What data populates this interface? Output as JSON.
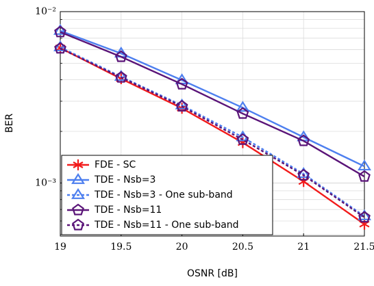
{
  "chart_data": {
    "type": "line",
    "xlabel": "OSNR [dB]",
    "ylabel": "BER",
    "x": [
      19,
      19.5,
      20,
      20.5,
      21,
      21.5
    ],
    "xlim": [
      19,
      21.5
    ],
    "xticks": [
      19,
      19.5,
      20,
      20.5,
      21,
      21.5
    ],
    "ylim": [
      0.00049,
      0.01
    ],
    "log_y": true,
    "yticks": [
      {
        "value": 0.01,
        "label": "10⁻²"
      },
      {
        "value": 0.001,
        "label": "10⁻³"
      }
    ],
    "grid": true,
    "minor_grid": true,
    "legend": "lower left",
    "series": [
      {
        "name": "FDE - SC",
        "color": "#f21b1b",
        "marker": "asterisk",
        "dashed": false,
        "values": [
          0.00614,
          0.00406,
          0.00273,
          0.00172,
          0.00102,
          0.000575
        ]
      },
      {
        "name": "TDE - Nsb=3",
        "color": "#4d7fef",
        "marker": "triangle",
        "dashed": false,
        "values": [
          0.00773,
          0.0057,
          0.00398,
          0.00275,
          0.00185,
          0.00125
        ]
      },
      {
        "name": "TDE - Nsb=3 - One sub-band",
        "color": "#4d7fef",
        "marker": "triangle",
        "dashed": true,
        "values": [
          0.0062,
          0.00417,
          0.00284,
          0.00185,
          0.00113,
          0.00064
        ]
      },
      {
        "name": "TDE - Nsb=11",
        "color": "#5a1478",
        "marker": "pentagon",
        "dashed": false,
        "values": [
          0.0076,
          0.00545,
          0.00377,
          0.00254,
          0.00176,
          0.00109
        ]
      },
      {
        "name": "TDE - Nsb=11 - One sub-band",
        "color": "#5a1478",
        "marker": "pentagon",
        "dashed": true,
        "values": [
          0.0061,
          0.00413,
          0.0028,
          0.00179,
          0.00111,
          0.00063
        ]
      }
    ]
  }
}
